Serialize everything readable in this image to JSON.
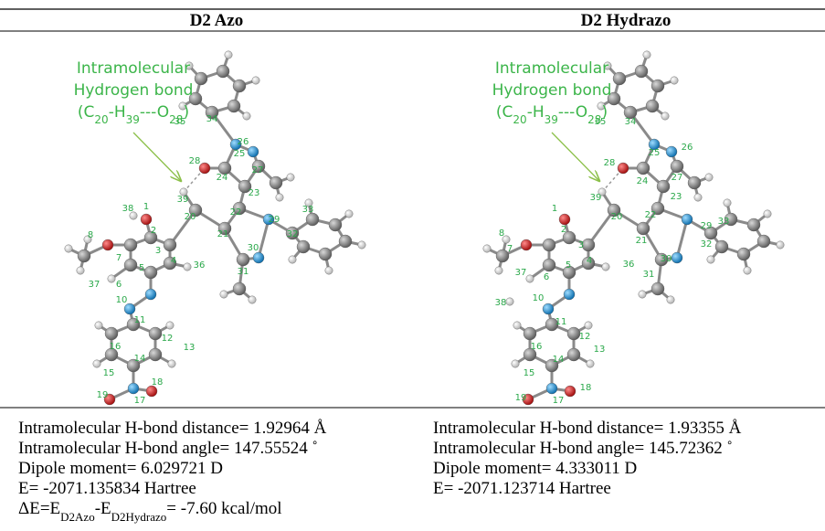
{
  "panels": [
    {
      "title": "D2 Azo",
      "annotation": {
        "lines": [
          "Intramolecular",
          "Hydrogen bond"
        ],
        "formula": [
          "(C",
          "20",
          "-H",
          "39",
          "---O",
          "28",
          ")"
        ]
      },
      "atom_labels": [
        "34",
        "35",
        "26",
        "25",
        "28",
        "27",
        "24",
        "23",
        "39",
        "20",
        "22",
        "33",
        "29",
        "32",
        "1",
        "38",
        "2",
        "21",
        "8",
        "3",
        "30",
        "4",
        "36",
        "31",
        "5",
        "7",
        "6",
        "37",
        "10",
        "11",
        "12",
        "16",
        "13",
        "14",
        "15",
        "18",
        "19",
        "17"
      ],
      "properties": [
        "Intramolecular H-bond distance= 1.92964 Å",
        "Intramolecular H-bond angle= 147.55524 ˚",
        "Dipole moment= 6.029721 D",
        "E= -2071.135834 Hartree"
      ],
      "delta_e": [
        "ΔE=E",
        "D2Azo",
        "-E",
        "D2Hydrazo",
        "=  -7.60 kcal/mol"
      ]
    },
    {
      "title": "D2 Hydrazo",
      "annotation": {
        "lines": [
          "Intramolecular",
          "Hydrogen bond"
        ],
        "formula": [
          "(C",
          "20",
          "-H",
          "39",
          "---O",
          "28",
          ")"
        ]
      },
      "atom_labels": [
        "34",
        "35",
        "26",
        "25",
        "28",
        "27",
        "24",
        "23",
        "39",
        "20",
        "22",
        "33",
        "29",
        "32",
        "1",
        "38",
        "2",
        "21",
        "8",
        "3",
        "30",
        "4",
        "36",
        "31",
        "5",
        "7",
        "6",
        "37",
        "10",
        "11",
        "12",
        "16",
        "13",
        "14",
        "15",
        "18",
        "19",
        "17"
      ],
      "properties": [
        "Intramolecular H-bond distance= 1.93355 Å",
        "Intramolecular H-bond angle= 145.72362 ˚",
        "Dipole moment= 4.333011 D",
        "E= -2071.123714 Hartree"
      ]
    }
  ]
}
